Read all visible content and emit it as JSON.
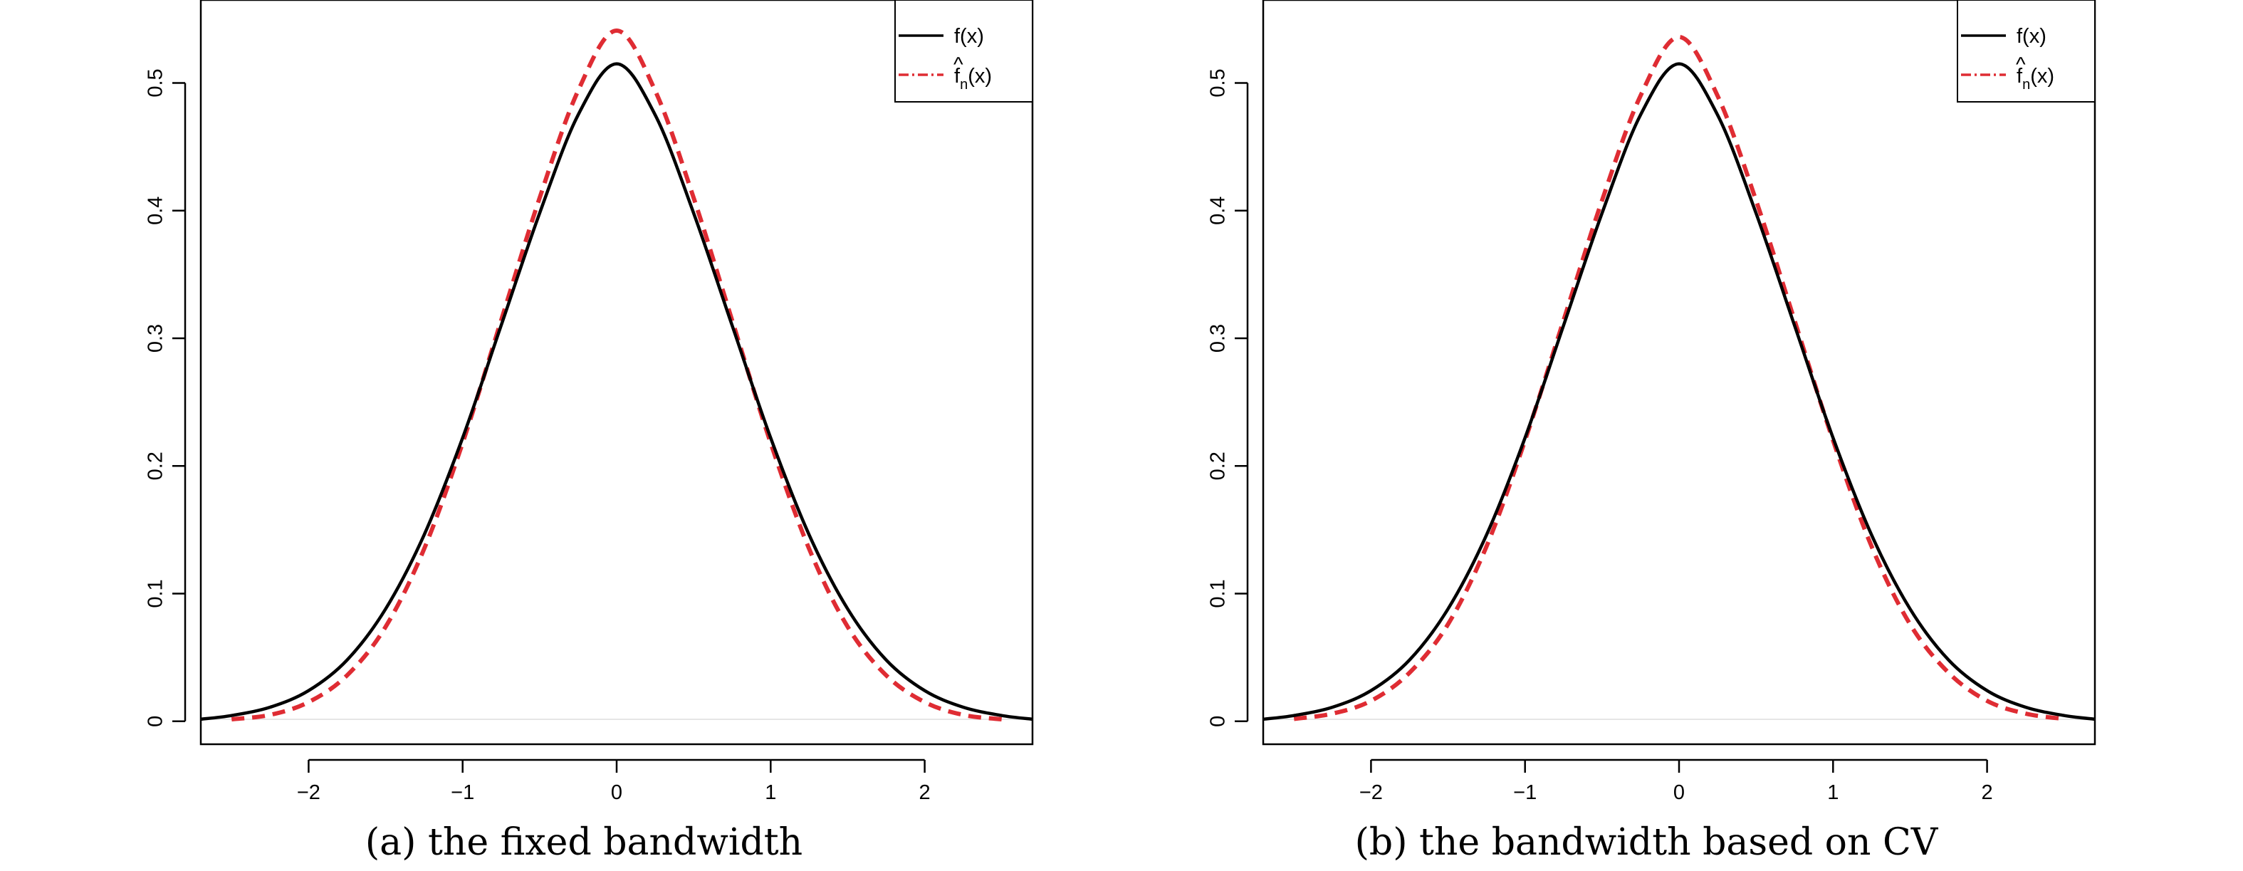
{
  "chart_data": [
    {
      "type": "line",
      "caption": "(a) the fixed bandwidth",
      "xlim": [
        -2.7,
        2.7
      ],
      "ylim": [
        -0.018,
        0.565
      ],
      "xticks": [
        -2,
        -1,
        0,
        1,
        2
      ],
      "xtick_labels": [
        "−2",
        "−1",
        "0",
        "1",
        "2"
      ],
      "yticks": [
        0,
        0.1,
        0.2,
        0.3,
        0.4,
        0.5
      ],
      "ytick_labels": [
        "0",
        "0.1",
        "0.2",
        "0.3",
        "0.4",
        "0.5"
      ],
      "legend_position": "top-right",
      "series": [
        {
          "name": "f(x)",
          "color": "#000000",
          "style": "solid",
          "x": [
            -2.7,
            -2.5,
            -2.25,
            -2.0,
            -1.75,
            -1.5,
            -1.25,
            -1.0,
            -0.75,
            -0.5,
            -0.25,
            0.0,
            0.25,
            0.5,
            0.75,
            1.0,
            1.25,
            1.5,
            1.75,
            2.0,
            2.25,
            2.5,
            2.7
          ],
          "y": [
            0.0016,
            0.0045,
            0.011,
            0.024,
            0.048,
            0.088,
            0.146,
            0.222,
            0.31,
            0.398,
            0.475,
            0.515,
            0.475,
            0.398,
            0.31,
            0.222,
            0.146,
            0.088,
            0.048,
            0.024,
            0.011,
            0.0045,
            0.0016
          ]
        },
        {
          "name": "f̂n(x)",
          "color": "#df2c33",
          "style": "dashed",
          "x": [
            -2.5,
            -2.25,
            -2.0,
            -1.75,
            -1.5,
            -1.25,
            -1.0,
            -0.75,
            -0.5,
            -0.25,
            0.0,
            0.25,
            0.5,
            0.75,
            1.0,
            1.25,
            1.5,
            1.75,
            2.0,
            2.25,
            2.5
          ],
          "y": [
            0.0015,
            0.005,
            0.015,
            0.036,
            0.074,
            0.135,
            0.218,
            0.314,
            0.41,
            0.494,
            0.541,
            0.494,
            0.41,
            0.314,
            0.218,
            0.135,
            0.074,
            0.036,
            0.015,
            0.005,
            0.0015
          ]
        }
      ]
    },
    {
      "type": "line",
      "caption": "(b) the bandwidth based on CV",
      "xlim": [
        -2.7,
        2.7
      ],
      "ylim": [
        -0.018,
        0.565
      ],
      "xticks": [
        -2,
        -1,
        0,
        1,
        2
      ],
      "xtick_labels": [
        "−2",
        "−1",
        "0",
        "1",
        "2"
      ],
      "yticks": [
        0,
        0.1,
        0.2,
        0.3,
        0.4,
        0.5
      ],
      "ytick_labels": [
        "0",
        "0.1",
        "0.2",
        "0.3",
        "0.4",
        "0.5"
      ],
      "legend_position": "top-right",
      "series": [
        {
          "name": "f(x)",
          "color": "#000000",
          "style": "solid",
          "x": [
            -2.7,
            -2.5,
            -2.25,
            -2.0,
            -1.75,
            -1.5,
            -1.25,
            -1.0,
            -0.75,
            -0.5,
            -0.25,
            0.0,
            0.25,
            0.5,
            0.75,
            1.0,
            1.25,
            1.5,
            1.75,
            2.0,
            2.25,
            2.5,
            2.7
          ],
          "y": [
            0.0016,
            0.0045,
            0.011,
            0.024,
            0.048,
            0.088,
            0.146,
            0.222,
            0.31,
            0.398,
            0.475,
            0.515,
            0.475,
            0.398,
            0.31,
            0.222,
            0.146,
            0.088,
            0.048,
            0.024,
            0.011,
            0.0045,
            0.0016
          ]
        },
        {
          "name": "f̂n(x)",
          "color": "#df2c33",
          "style": "dashed",
          "x": [
            -2.5,
            -2.25,
            -2.0,
            -1.75,
            -1.5,
            -1.25,
            -1.0,
            -0.75,
            -0.5,
            -0.25,
            0.0,
            0.25,
            0.5,
            0.75,
            1.0,
            1.25,
            1.5,
            1.75,
            2.0,
            2.25,
            2.5
          ],
          "y": [
            0.0018,
            0.006,
            0.016,
            0.038,
            0.076,
            0.137,
            0.22,
            0.314,
            0.408,
            0.49,
            0.536,
            0.49,
            0.408,
            0.314,
            0.22,
            0.137,
            0.076,
            0.038,
            0.016,
            0.006,
            0.0018
          ]
        }
      ]
    }
  ],
  "legend_text": {
    "solid": "f(x)",
    "dashed_base": "f",
    "dashed_hat": "^",
    "dashed_sub": "n",
    "dashed_tail": "(x)"
  },
  "captions": [
    "(a) the fixed bandwidth",
    "(b) the bandwidth based on CV"
  ]
}
